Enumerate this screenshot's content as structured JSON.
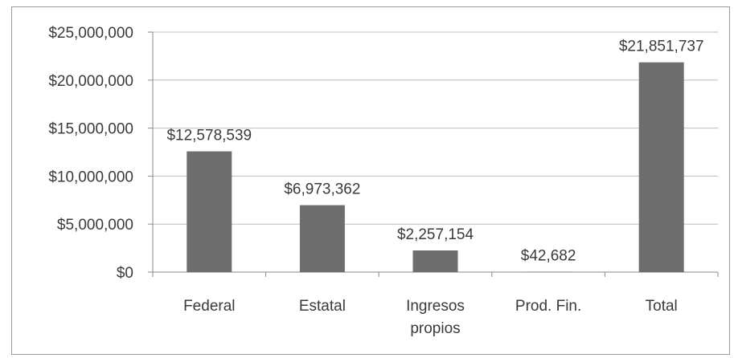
{
  "chart_data": {
    "type": "bar",
    "title": "",
    "xlabel": "",
    "ylabel": "",
    "categories": [
      [
        "Federal"
      ],
      [
        "Estatal"
      ],
      [
        "Ingresos",
        "propios"
      ],
      [
        "Prod. Fin."
      ],
      [
        "Total"
      ]
    ],
    "values": [
      12578539,
      6973362,
      2257154,
      42682,
      21851737
    ],
    "data_labels": [
      "$12,578,539",
      "$6,973,362",
      "$2,257,154",
      "$42,682",
      "$21,851,737"
    ],
    "ylim": [
      0,
      25000000
    ],
    "yticks": [
      0,
      5000000,
      10000000,
      15000000,
      20000000,
      25000000
    ],
    "ytick_labels": [
      "$0",
      "$5,000,000",
      "$10,000,000",
      "$15,000,000",
      "$20,000,000",
      "$25,000,000"
    ],
    "grid": true,
    "legend": "none",
    "colors": {
      "bar": "#6e6e6e",
      "grid": "#bdbdbd",
      "axis": "#8a8a8a",
      "text": "#3a3a3a"
    }
  }
}
